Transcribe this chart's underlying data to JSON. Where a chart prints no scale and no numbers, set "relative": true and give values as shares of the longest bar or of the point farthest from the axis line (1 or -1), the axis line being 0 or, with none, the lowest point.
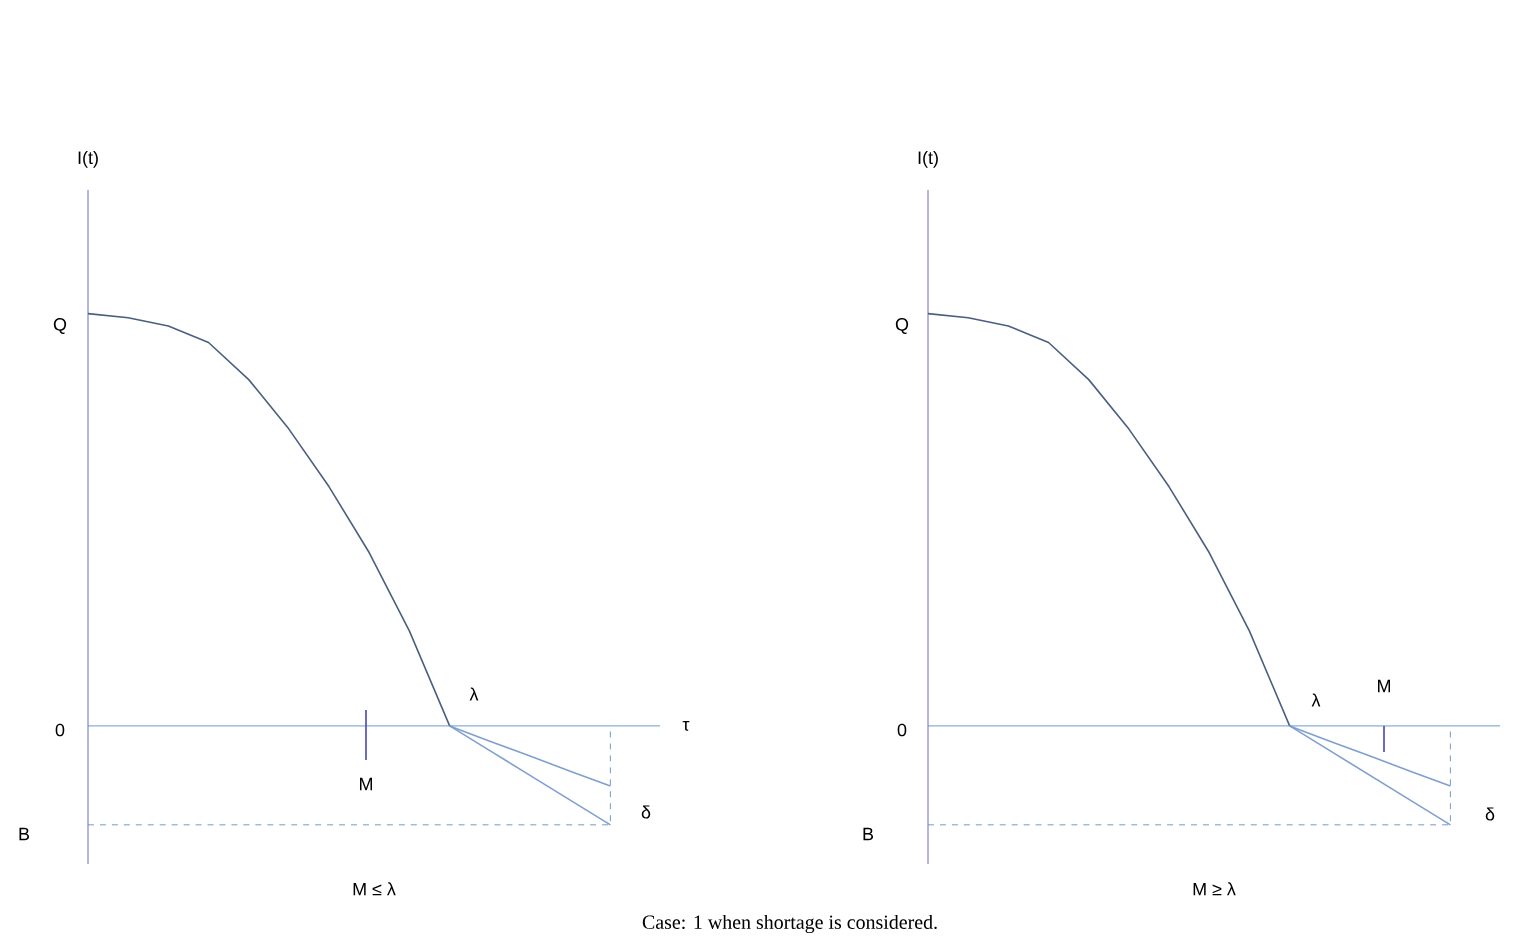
{
  "chart_data": [
    {
      "type": "line",
      "relative": true,
      "ylabel": "I(t)",
      "xlabel": "τ",
      "subtitle": "M ≤ λ",
      "marker": "none",
      "categories": [
        null,
        null,
        null,
        null,
        null,
        null,
        null,
        null,
        null,
        null,
        null,
        null,
        null,
        null
      ],
      "series": [
        {
          "color": "#4a5f80",
          "values": [
            1,
            0.99,
            0.97,
            0.93,
            0.84,
            0.72,
            0.58,
            0.42,
            0.23,
            0,
            null,
            null,
            null,
            null
          ]
        },
        {
          "color": "#7f9fd0",
          "values": [
            null,
            null,
            null,
            null,
            null,
            null,
            null,
            null,
            null,
            0,
            -0.037,
            -0.073,
            -0.11,
            -0.146
          ]
        },
        {
          "color": "#7f9fd0",
          "values": [
            null,
            null,
            null,
            null,
            null,
            null,
            null,
            null,
            null,
            0,
            -0.06,
            -0.12,
            -0.18,
            -0.24
          ]
        }
      ],
      "ref_lines": [
        {
          "axis": "y",
          "value": 0,
          "color": "#4f81bd"
        },
        {
          "axis": "y",
          "value": -0.24,
          "line_style": "dashed",
          "color": "#4f81bd"
        }
      ],
      "annotations": [
        "Q",
        "0",
        "B",
        "λ",
        "M",
        "δ",
        "Case: 1 when shortage is considered."
      ]
    },
    {
      "type": "line",
      "relative": true,
      "ylabel": "I(t)",
      "subtitle": "M ≥ λ",
      "marker": "none",
      "categories": [
        null,
        null,
        null,
        null,
        null,
        null,
        null,
        null,
        null,
        null,
        null,
        null,
        null,
        null
      ],
      "series": [
        {
          "color": "#4a5f80",
          "values": [
            1,
            0.99,
            0.97,
            0.93,
            0.84,
            0.72,
            0.58,
            0.42,
            0.23,
            0,
            null,
            null,
            null,
            null
          ]
        },
        {
          "color": "#7f9fd0",
          "values": [
            null,
            null,
            null,
            null,
            null,
            null,
            null,
            null,
            null,
            0,
            -0.037,
            -0.073,
            -0.11,
            -0.146
          ]
        },
        {
          "color": "#7f9fd0",
          "values": [
            null,
            null,
            null,
            null,
            null,
            null,
            null,
            null,
            null,
            0,
            -0.06,
            -0.12,
            -0.18,
            -0.24
          ]
        }
      ],
      "ref_lines": [
        {
          "axis": "y",
          "value": 0,
          "color": "#4f81bd"
        },
        {
          "axis": "y",
          "value": -0.24,
          "line_style": "dashed",
          "color": "#4f81bd"
        }
      ],
      "annotations": [
        "Q",
        "0",
        "B",
        "λ",
        "M",
        "δ"
      ]
    }
  ]
}
